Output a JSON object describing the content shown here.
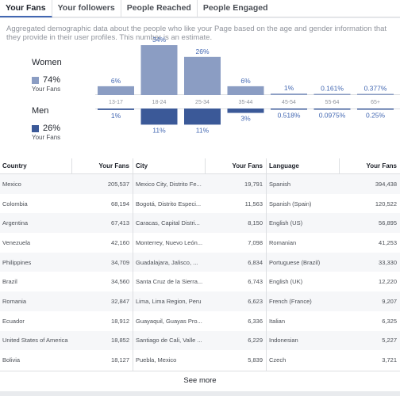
{
  "tabs": [
    {
      "label": "Your Fans",
      "active": true
    },
    {
      "label": "Your followers",
      "active": false
    },
    {
      "label": "People Reached",
      "active": false
    },
    {
      "label": "People Engaged",
      "active": false
    }
  ],
  "description": "Aggregated demographic data about the people who like your Page based on the age and gender information that they provide in their user profiles. This number is an estimate.",
  "legend": {
    "women": {
      "name": "Women",
      "pct": "74%",
      "sub": "Your Fans",
      "color": "#8b9dc3"
    },
    "men": {
      "name": "Men",
      "pct": "26%",
      "sub": "Your Fans",
      "color": "#3b5998"
    }
  },
  "chart_data": {
    "type": "bar",
    "categories": [
      "13-17",
      "18-24",
      "25-34",
      "35-44",
      "45-54",
      "55-64",
      "65+"
    ],
    "series": [
      {
        "name": "Women",
        "values": [
          6,
          34,
          26,
          6,
          1,
          0.161,
          0.377
        ],
        "labels": [
          "6%",
          "34%",
          "26%",
          "6%",
          "1%",
          "0.161%",
          "0.377%"
        ]
      },
      {
        "name": "Men",
        "values": [
          1,
          11,
          11,
          3,
          0.518,
          0.0975,
          0.25
        ],
        "labels": [
          "1%",
          "11%",
          "11%",
          "3%",
          "0.518%",
          "0.0975%",
          "0.25%"
        ]
      }
    ]
  },
  "tables": [
    {
      "header": [
        "Country",
        "Your Fans"
      ],
      "rows": [
        [
          "Mexico",
          "205,537"
        ],
        [
          "Colombia",
          "68,194"
        ],
        [
          "Argentina",
          "67,413"
        ],
        [
          "Venezuela",
          "42,160"
        ],
        [
          "Philippines",
          "34,709"
        ],
        [
          "Brazil",
          "34,560"
        ],
        [
          "Romania",
          "32,847"
        ],
        [
          "Ecuador",
          "18,912"
        ],
        [
          "United States of America",
          "18,852"
        ],
        [
          "Bolivia",
          "18,127"
        ]
      ]
    },
    {
      "header": [
        "City",
        "Your Fans"
      ],
      "rows": [
        [
          "Mexico City, Distrito Fe...",
          "19,791"
        ],
        [
          "Bogotá, Distrito Especi...",
          "11,563"
        ],
        [
          "Caracas, Capital Distri...",
          "8,150"
        ],
        [
          "Monterrey, Nuevo León...",
          "7,098"
        ],
        [
          "Guadalajara, Jalisco, ...",
          "6,834"
        ],
        [
          "Santa Cruz de la Sierra...",
          "6,743"
        ],
        [
          "Lima, Lima Region, Peru",
          "6,623"
        ],
        [
          "Guayaquil, Guayas Pro...",
          "6,336"
        ],
        [
          "Santiago de Cali, Valle ...",
          "6,229"
        ],
        [
          "Puebla, Mexico",
          "5,839"
        ]
      ]
    },
    {
      "header": [
        "Language",
        "Your Fans"
      ],
      "rows": [
        [
          "Spanish",
          "394,438"
        ],
        [
          "Spanish (Spain)",
          "120,522"
        ],
        [
          "English (US)",
          "56,895"
        ],
        [
          "Romanian",
          "41,253"
        ],
        [
          "Portuguese (Brazil)",
          "33,330"
        ],
        [
          "English (UK)",
          "12,220"
        ],
        [
          "French (France)",
          "9,207"
        ],
        [
          "Italian",
          "6,325"
        ],
        [
          "Indonesian",
          "5,227"
        ],
        [
          "Czech",
          "3,721"
        ]
      ]
    }
  ],
  "see_more": "See more"
}
